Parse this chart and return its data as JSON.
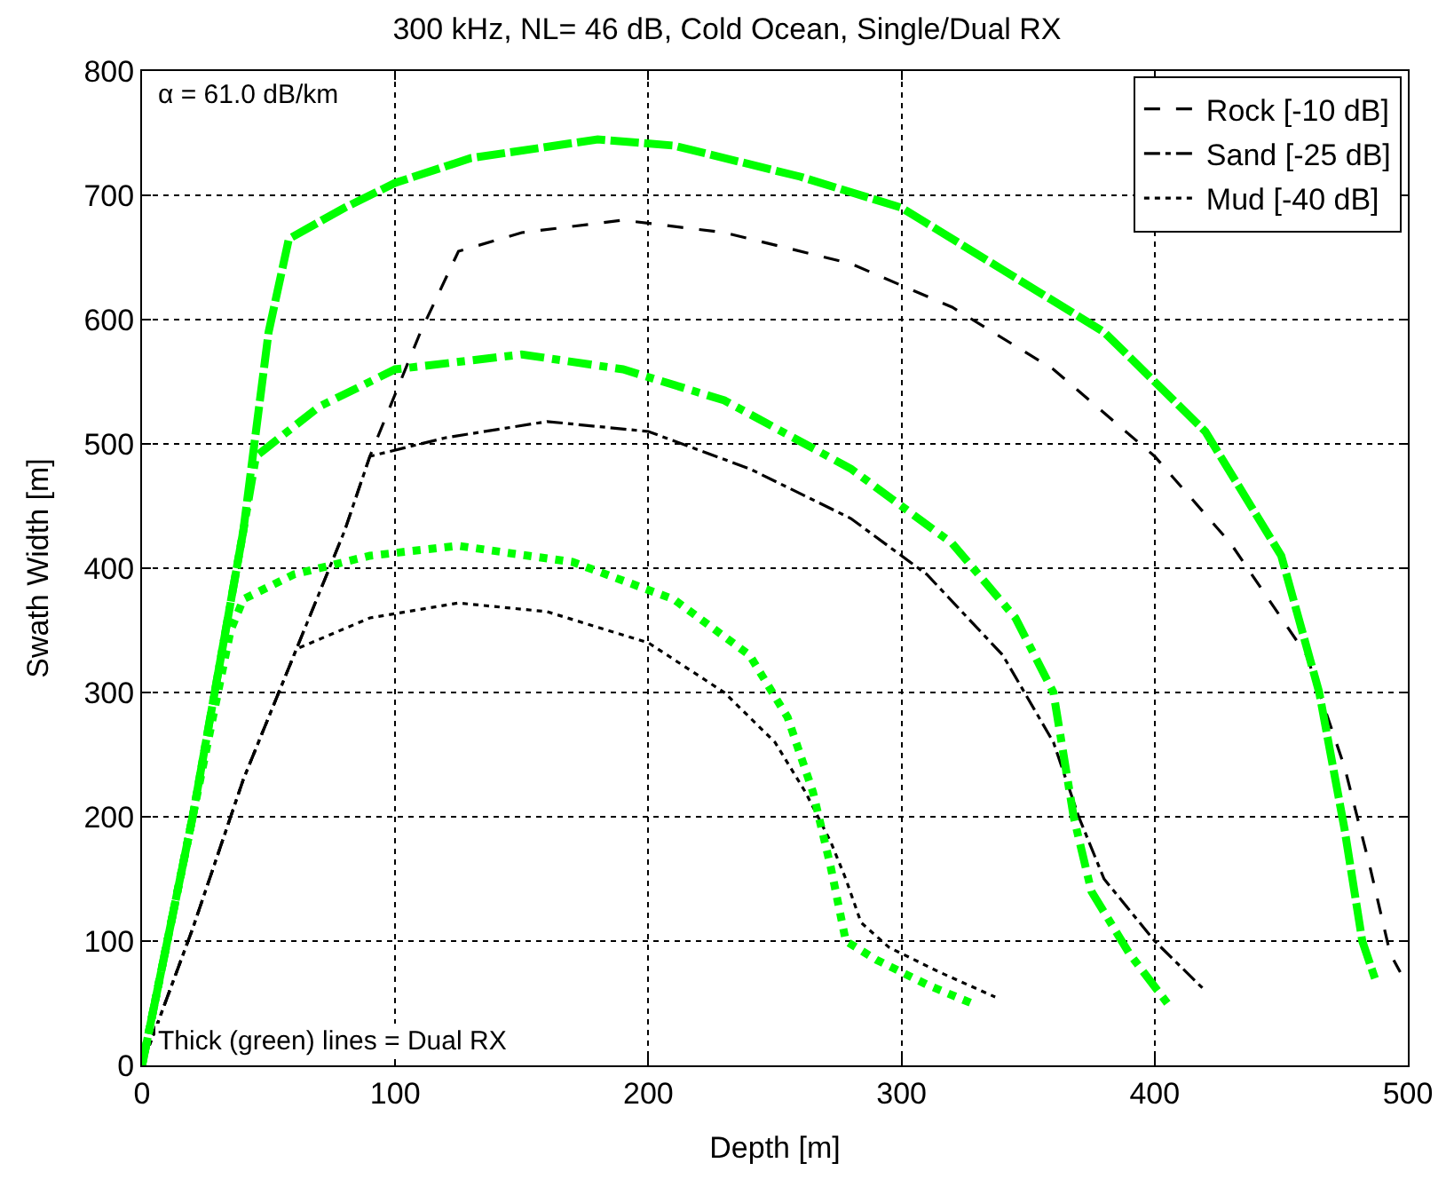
{
  "chart_data": {
    "type": "line",
    "title": "300 kHz, NL= 46 dB, Cold Ocean, Single/Dual RX",
    "xlabel": "Depth [m]",
    "ylabel": "Swath Width [m]",
    "xlim": [
      0,
      500
    ],
    "xticks": [
      0,
      100,
      200,
      300,
      400,
      500
    ],
    "ylim": [
      0,
      800
    ],
    "yticks": [
      0,
      100,
      200,
      300,
      400,
      500,
      600,
      700,
      800
    ],
    "grid": true,
    "legend": "top right",
    "marker": "none",
    "annotations": [
      "α = 61.0 dB/km",
      "Thick (green) lines = Dual RX"
    ],
    "series": [
      {
        "name": "Rock [-10 dB]",
        "color": "#000000",
        "line_style": "dashed",
        "x": [
          0,
          20,
          40,
          61,
          80,
          90,
          110,
          125,
          150,
          190,
          230,
          280,
          320,
          360,
          400,
          430,
          460,
          475,
          485,
          493,
          497
        ],
        "values": [
          0,
          110,
          230,
          335,
          430,
          490,
          590,
          655,
          670,
          680,
          670,
          645,
          610,
          560,
          490,
          420,
          330,
          240,
          160,
          90,
          75
        ]
      },
      {
        "name": "Sand [-25 dB]",
        "color": "#000000",
        "line_style": "dashdot",
        "x": [
          0,
          20,
          40,
          61,
          80,
          90,
          120,
          160,
          200,
          240,
          280,
          310,
          340,
          360,
          370,
          380,
          400,
          420
        ],
        "values": [
          0,
          110,
          230,
          335,
          430,
          490,
          505,
          518,
          510,
          480,
          440,
          395,
          330,
          260,
          200,
          150,
          100,
          60
        ]
      },
      {
        "name": "Mud [-40 dB]",
        "color": "#000000",
        "line_style": "dotted",
        "x": [
          0,
          20,
          40,
          61,
          90,
          125,
          160,
          200,
          230,
          250,
          262,
          272,
          278,
          284,
          295,
          315,
          337
        ],
        "values": [
          0,
          110,
          230,
          335,
          360,
          372,
          365,
          340,
          300,
          260,
          220,
          180,
          150,
          115,
          95,
          75,
          55
        ]
      },
      {
        "color": "#00ff00",
        "line_style": "dashed",
        "x": [
          0,
          20,
          40,
          50,
          58,
          80,
          100,
          130,
          180,
          210,
          260,
          300,
          340,
          380,
          420,
          450,
          465,
          475,
          482,
          487
        ],
        "values": [
          0,
          200,
          430,
          590,
          665,
          690,
          710,
          730,
          745,
          740,
          715,
          690,
          640,
          590,
          510,
          410,
          300,
          190,
          100,
          70
        ]
      },
      {
        "color": "#00ff00",
        "line_style": "dashdot",
        "x": [
          0,
          20,
          40,
          45,
          70,
          100,
          150,
          190,
          230,
          280,
          320,
          345,
          360,
          368,
          375,
          390,
          405
        ],
        "values": [
          0,
          200,
          430,
          490,
          530,
          560,
          572,
          560,
          535,
          480,
          420,
          360,
          300,
          200,
          140,
          90,
          50
        ]
      },
      {
        "color": "#00ff00",
        "line_style": "dotted",
        "x": [
          0,
          20,
          35,
          40,
          60,
          90,
          125,
          170,
          210,
          240,
          255,
          265,
          272,
          278,
          290,
          310,
          330
        ],
        "values": [
          0,
          200,
          350,
          375,
          395,
          410,
          418,
          405,
          375,
          330,
          280,
          220,
          160,
          100,
          85,
          65,
          48
        ]
      }
    ]
  }
}
